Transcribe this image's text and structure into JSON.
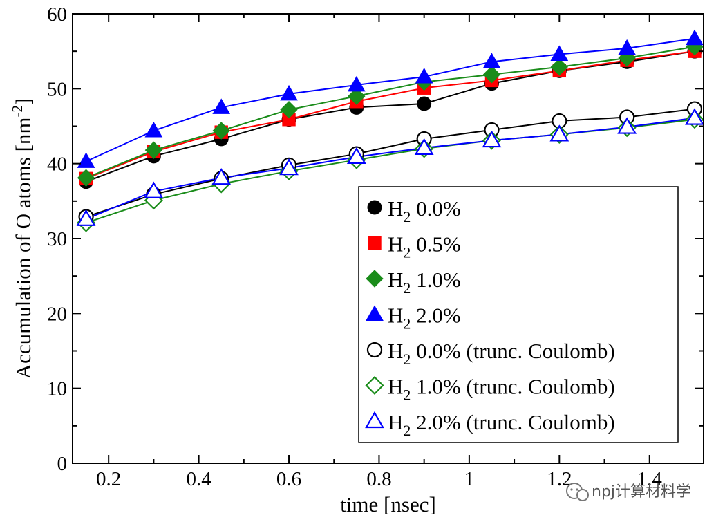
{
  "chart_data": {
    "type": "line",
    "xlabel": "time [nsec]",
    "ylabel": {
      "main": "Accumulation of O atoms [nm",
      "sup": "-2",
      "close": "]"
    },
    "xlim": [
      0.12,
      1.52
    ],
    "ylim": [
      0,
      60
    ],
    "xticks": [
      0.2,
      0.4,
      0.6,
      0.8,
      1.0,
      1.2,
      1.4
    ],
    "xtick_labels": [
      "0.2",
      "0.4",
      "0.6",
      "0.8",
      "1",
      "1.2",
      "1.4"
    ],
    "yticks": [
      0,
      10,
      20,
      30,
      40,
      50,
      60
    ],
    "ytick_labels": [
      "0",
      "10",
      "20",
      "30",
      "40",
      "50",
      "60"
    ],
    "grid": false,
    "legend_position": "bottom-right",
    "x": [
      0.15,
      0.3,
      0.45,
      0.6,
      0.75,
      0.9,
      1.05,
      1.2,
      1.35,
      1.5
    ],
    "series": [
      {
        "name": "0.0%",
        "marker": "circle",
        "filled": true,
        "color": "#000000",
        "line_color": "#000000",
        "values": [
          37.6,
          41.0,
          43.3,
          45.9,
          47.5,
          48.0,
          50.7,
          52.4,
          53.6,
          55.0
        ]
      },
      {
        "name": "0.5%",
        "marker": "square",
        "filled": true,
        "color": "#ff0000",
        "line_color": "#ff0000",
        "values": [
          38.0,
          41.6,
          44.2,
          45.9,
          48.3,
          50.1,
          51.1,
          52.4,
          53.8,
          55.0
        ]
      },
      {
        "name": "1.0%",
        "marker": "diamond",
        "filled": true,
        "color": "#1a8c1a",
        "line_color": "#1a8c1a",
        "values": [
          38.1,
          41.8,
          44.4,
          47.2,
          49.0,
          50.9,
          51.9,
          52.9,
          54.1,
          55.6
        ]
      },
      {
        "name": "2.0%",
        "marker": "triangle",
        "filled": true,
        "color": "#0000ff",
        "line_color": "#0000ff",
        "values": [
          40.3,
          44.4,
          47.5,
          49.3,
          50.5,
          51.6,
          53.6,
          54.6,
          55.4,
          56.7
        ]
      },
      {
        "name": "0.0% (trunc. Coulomb)",
        "marker": "circle",
        "filled": false,
        "color": "#000000",
        "line_color": "#000000",
        "values": [
          32.9,
          35.9,
          38.0,
          39.8,
          41.3,
          43.3,
          44.5,
          45.7,
          46.2,
          47.3
        ]
      },
      {
        "name": "1.0% (trunc. Coulomb)",
        "marker": "diamond",
        "filled": false,
        "color": "#1a8c1a",
        "line_color": "#1a8c1a",
        "values": [
          32.1,
          35.1,
          37.3,
          39.0,
          40.5,
          42.0,
          43.1,
          43.9,
          44.8,
          45.9
        ]
      },
      {
        "name": "2.0% (trunc. Coulomb)",
        "marker": "triangle",
        "filled": false,
        "color": "#0000ff",
        "line_color": "#0000ff",
        "values": [
          32.6,
          36.3,
          38.1,
          39.4,
          40.9,
          42.1,
          43.1,
          43.9,
          44.9,
          46.1
        ]
      }
    ],
    "legend_prefix": "H",
    "legend_sub": "2"
  },
  "watermark": {
    "text": "npj计算材料学",
    "icon": "wechat-icon"
  }
}
